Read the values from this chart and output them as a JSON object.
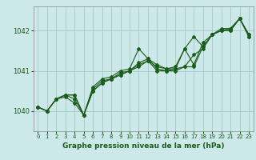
{
  "background_color": "#cce8e8",
  "grid_color": "#aacccc",
  "line_color": "#1a5c1a",
  "text_color": "#1a5c1a",
  "xlabel": "Graphe pression niveau de la mer (hPa)",
  "ylim": [
    1039.5,
    1042.6
  ],
  "xlim": [
    -0.5,
    23.5
  ],
  "yticks": [
    1040,
    1041,
    1042
  ],
  "xticks": [
    0,
    1,
    2,
    3,
    4,
    5,
    6,
    7,
    8,
    9,
    10,
    11,
    12,
    13,
    14,
    15,
    16,
    17,
    18,
    19,
    20,
    21,
    22,
    23
  ],
  "series": [
    [
      1040.1,
      1040.0,
      1040.3,
      1040.4,
      1040.4,
      1039.9,
      1040.5,
      1040.7,
      1040.8,
      1040.9,
      1041.0,
      1041.2,
      1041.3,
      1041.05,
      1041.0,
      1041.0,
      1041.1,
      1041.1,
      1041.6,
      1041.9,
      1042.0,
      1042.0,
      1042.3,
      1041.9
    ],
    [
      1040.1,
      1040.0,
      1040.3,
      1040.4,
      1040.4,
      1039.9,
      1040.6,
      1040.8,
      1040.85,
      1041.0,
      1041.05,
      1041.55,
      1041.3,
      1041.15,
      1041.05,
      1041.1,
      1041.55,
      1041.15,
      1041.7,
      1041.9,
      1042.0,
      1042.0,
      1042.3,
      1041.9
    ],
    [
      1040.1,
      1040.0,
      1040.3,
      1040.35,
      1040.2,
      1039.9,
      1040.55,
      1040.75,
      1040.8,
      1040.95,
      1041.0,
      1041.15,
      1041.25,
      1041.1,
      1041.05,
      1041.05,
      1041.1,
      1041.4,
      1041.55,
      1041.9,
      1042.0,
      1042.05,
      1042.3,
      1041.85
    ],
    [
      1040.1,
      1040.0,
      1040.3,
      1040.4,
      1040.3,
      1039.9,
      1040.5,
      1040.7,
      1040.8,
      1040.9,
      1041.0,
      1041.1,
      1041.25,
      1041.0,
      1041.0,
      1041.05,
      1041.55,
      1041.85,
      1041.6,
      1041.9,
      1042.05,
      1042.05,
      1042.3,
      1041.85
    ]
  ]
}
